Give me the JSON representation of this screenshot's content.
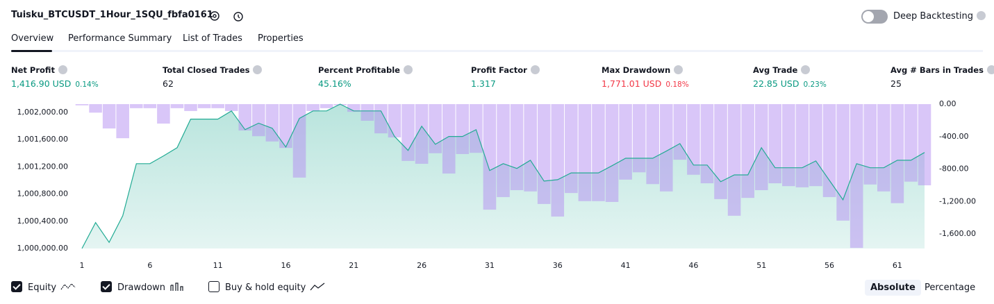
{
  "header": {
    "title": "Tuisku_BTCUSDT_1Hour_1SQU_fbfa0161",
    "toggle_label": "Deep Backtesting",
    "toggle_on": false
  },
  "tabs": [
    "Overview",
    "Performance Summary",
    "List of Trades",
    "Properties"
  ],
  "active_tab": 0,
  "metrics": [
    {
      "label": "Net Profit",
      "value": "1,416.90 USD",
      "percent": "0.14%",
      "tone": "up"
    },
    {
      "label": "Total Closed Trades",
      "value": "62",
      "tone": "plain"
    },
    {
      "label": "Percent Profitable",
      "value": "45.16%",
      "tone": "up"
    },
    {
      "label": "Profit Factor",
      "value": "1.317",
      "tone": "up"
    },
    {
      "label": "Max Drawdown",
      "value": "1,771.01 USD",
      "percent": "0.18%",
      "tone": "down"
    },
    {
      "label": "Avg Trade",
      "value": "22.85 USD",
      "percent": "0.23%",
      "tone": "up"
    },
    {
      "label": "Avg # Bars in Trades",
      "value": "25",
      "tone": "plain"
    }
  ],
  "chart_data": {
    "type": "combo",
    "x": [
      1,
      2,
      3,
      4,
      5,
      6,
      7,
      8,
      9,
      10,
      11,
      12,
      13,
      14,
      15,
      16,
      17,
      18,
      19,
      20,
      21,
      22,
      23,
      24,
      25,
      26,
      27,
      28,
      29,
      30,
      31,
      32,
      33,
      34,
      35,
      36,
      37,
      38,
      39,
      40,
      41,
      42,
      43,
      44,
      45,
      46,
      47,
      48,
      49,
      50,
      51,
      52,
      53,
      54,
      55,
      56,
      57,
      58,
      59,
      60,
      61,
      62,
      63
    ],
    "xlim": [
      1,
      63
    ],
    "xticks": [
      1,
      6,
      11,
      16,
      21,
      26,
      31,
      36,
      41,
      46,
      51,
      56,
      61
    ],
    "ylim": [
      1000000,
      1002120
    ],
    "yticks": [
      {
        "value": 1000000,
        "label": "1,000,000.00"
      },
      {
        "value": 1000400,
        "label": "1,000,400.00"
      },
      {
        "value": 1000800,
        "label": "1,000,800.00"
      },
      {
        "value": 1001200,
        "label": "1,001,200.00"
      },
      {
        "value": 1001600,
        "label": "1,001,600.00"
      },
      {
        "value": 1002000,
        "label": "1,002,000.00"
      }
    ],
    "y2lim": [
      -1778,
      0
    ],
    "y2ticks": [
      {
        "value": 0,
        "label": "0.00"
      },
      {
        "value": -400,
        "label": "-400.00"
      },
      {
        "value": -800,
        "label": "-800.00"
      },
      {
        "value": -1200,
        "label": "-1,200.00"
      },
      {
        "value": -1600,
        "label": "-1,600.00"
      }
    ],
    "grid": false,
    "series": [
      {
        "name": "Equity",
        "type": "area",
        "color": "#22ab94",
        "checked": true,
        "values": [
          1000000,
          1000380,
          1000090,
          1000480,
          1001245,
          1001245,
          1001360,
          1001480,
          1001900,
          1001900,
          1001900,
          1002020,
          1001745,
          1001840,
          1001765,
          1001490,
          1001910,
          1002020,
          1002020,
          1002120,
          1002020,
          1002020,
          1002020,
          1001645,
          1001440,
          1001795,
          1001530,
          1001645,
          1001645,
          1001745,
          1001145,
          1001245,
          1001175,
          1001295,
          1000990,
          1001010,
          1001110,
          1001110,
          1001110,
          1001215,
          1001325,
          1001325,
          1001325,
          1001430,
          1001540,
          1001225,
          1001225,
          1000980,
          1001080,
          1001080,
          1001480,
          1001185,
          1001185,
          1001185,
          1001285,
          1001000,
          1000715,
          1001245,
          1001185,
          1001185,
          1001295,
          1001295,
          1001410
        ]
      },
      {
        "name": "Drawdown",
        "type": "bar",
        "axis": "y2",
        "color": "#b48ef2",
        "checked": true,
        "values": [
          -15,
          -105,
          -300,
          -420,
          -50,
          -50,
          -240,
          -50,
          -85,
          -50,
          -50,
          -85,
          -325,
          -395,
          -460,
          -540,
          -905,
          -85,
          -50,
          -15,
          -95,
          -205,
          -360,
          -410,
          -700,
          -735,
          -605,
          -855,
          -615,
          -600,
          -1300,
          -1145,
          -1060,
          -1075,
          -1230,
          -1385,
          -1095,
          -1195,
          -1195,
          -1205,
          -930,
          -840,
          -985,
          -1075,
          -685,
          -870,
          -975,
          -1170,
          -1375,
          -1155,
          -1060,
          -975,
          -1010,
          -1025,
          -1010,
          -1145,
          -1435,
          -1771,
          -990,
          -1075,
          -1220,
          -955,
          -1000
        ]
      }
    ]
  },
  "extra_legend": {
    "label": "Buy & hold equity",
    "checked": false
  },
  "modes": [
    "Absolute",
    "Percentage"
  ],
  "active_mode": 0
}
